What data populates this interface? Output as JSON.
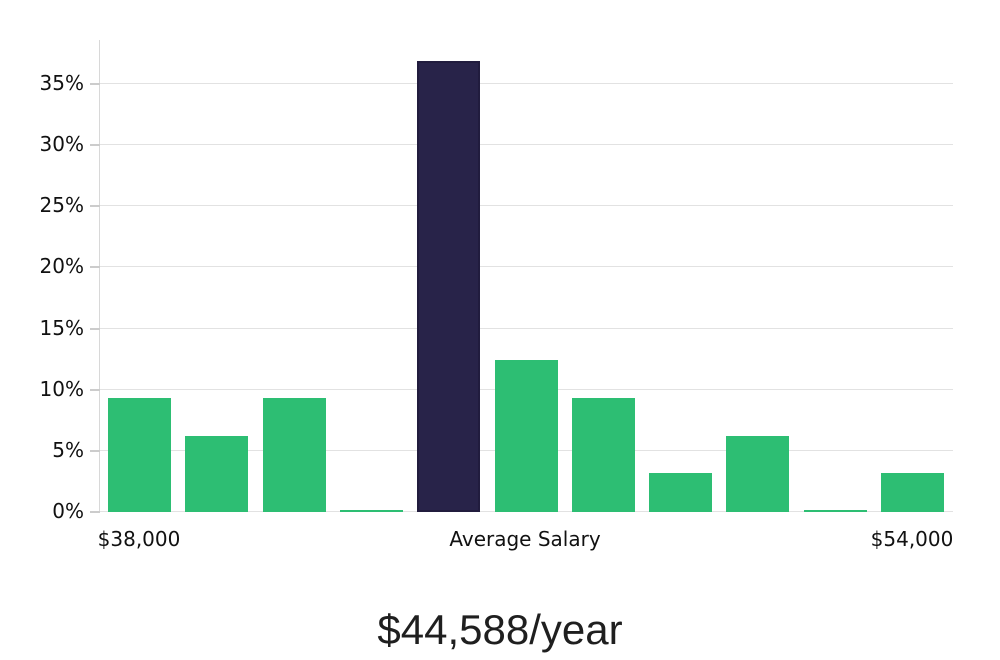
{
  "chart_data": {
    "type": "bar",
    "title": "",
    "xlabel": "",
    "ylabel": "",
    "grid": true,
    "legend": false,
    "ylim": [
      0,
      38.6
    ],
    "y_ticks": [
      {
        "label": "0%",
        "value": 0
      },
      {
        "label": "5%",
        "value": 5
      },
      {
        "label": "10%",
        "value": 10
      },
      {
        "label": "15%",
        "value": 15
      },
      {
        "label": "20%",
        "value": 20
      },
      {
        "label": "25%",
        "value": 25
      },
      {
        "label": "30%",
        "value": 30
      },
      {
        "label": "35%",
        "value": 35
      }
    ],
    "x_axis_labels": [
      {
        "label": "$38,000",
        "bar_index": 0
      },
      {
        "label": "Average Salary",
        "bar_index": 5
      },
      {
        "label": "$54,000",
        "bar_index": 10
      }
    ],
    "series": [
      {
        "name": "salary-distribution",
        "values": [
          9.3,
          6.2,
          9.3,
          0.15,
          36.9,
          12.4,
          9.3,
          3.2,
          6.2,
          0.15,
          3.2
        ],
        "highlight_index": 4
      }
    ],
    "footer_label": "$44,588/year",
    "colors": {
      "bar": "#2dbe73",
      "highlight_bar": "#282349",
      "highlight_border": "#211c3e",
      "gridline": "#e2e2e2",
      "axis_line": "#d8d8d8",
      "tick": "#cccccc",
      "axis_text": "#111111",
      "footer_text": "#1f1f1f"
    }
  }
}
